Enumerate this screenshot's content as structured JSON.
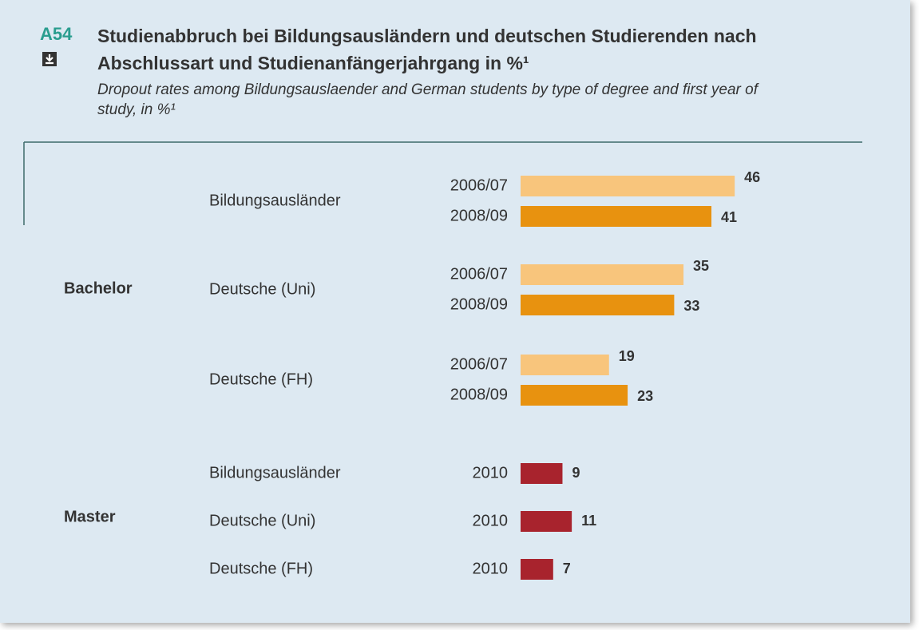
{
  "chart_data": {
    "type": "bar",
    "orientation": "horizontal",
    "label": "A54",
    "title": "Studienabbruch bei Bildungsausländern und deutschen Studierenden nach Abschlussart und Studienanfängerjahrgang in %¹",
    "subtitle": "Dropout rates among Bildungsauslaender and German students by type of degree and first year of study, in %¹",
    "degrees": [
      {
        "name": "Bachelor",
        "groups": [
          {
            "name": "Bildungsausländer",
            "categories": [
              "2006/07",
              "2008/09"
            ],
            "values": [
              46,
              41
            ],
            "colors": [
              "#f8c57c",
              "#e8920f"
            ]
          },
          {
            "name": "Deutsche (Uni)",
            "categories": [
              "2006/07",
              "2008/09"
            ],
            "values": [
              35,
              33
            ],
            "colors": [
              "#f8c57c",
              "#e8920f"
            ]
          },
          {
            "name": "Deutsche (FH)",
            "categories": [
              "2006/07",
              "2008/09"
            ],
            "values": [
              19,
              23
            ],
            "colors": [
              "#f8c57c",
              "#e8920f"
            ]
          }
        ]
      },
      {
        "name": "Master",
        "groups": [
          {
            "name": "Bildungsausländer",
            "categories": [
              "2010"
            ],
            "values": [
              9
            ],
            "colors": [
              "#a8232d"
            ]
          },
          {
            "name": "Deutsche (Uni)",
            "categories": [
              "2010"
            ],
            "values": [
              11
            ],
            "colors": [
              "#a8232d"
            ]
          },
          {
            "name": "Deutsche (FH)",
            "categories": [
              "2010"
            ],
            "values": [
              7
            ],
            "colors": [
              "#a8232d"
            ]
          }
        ]
      }
    ]
  }
}
